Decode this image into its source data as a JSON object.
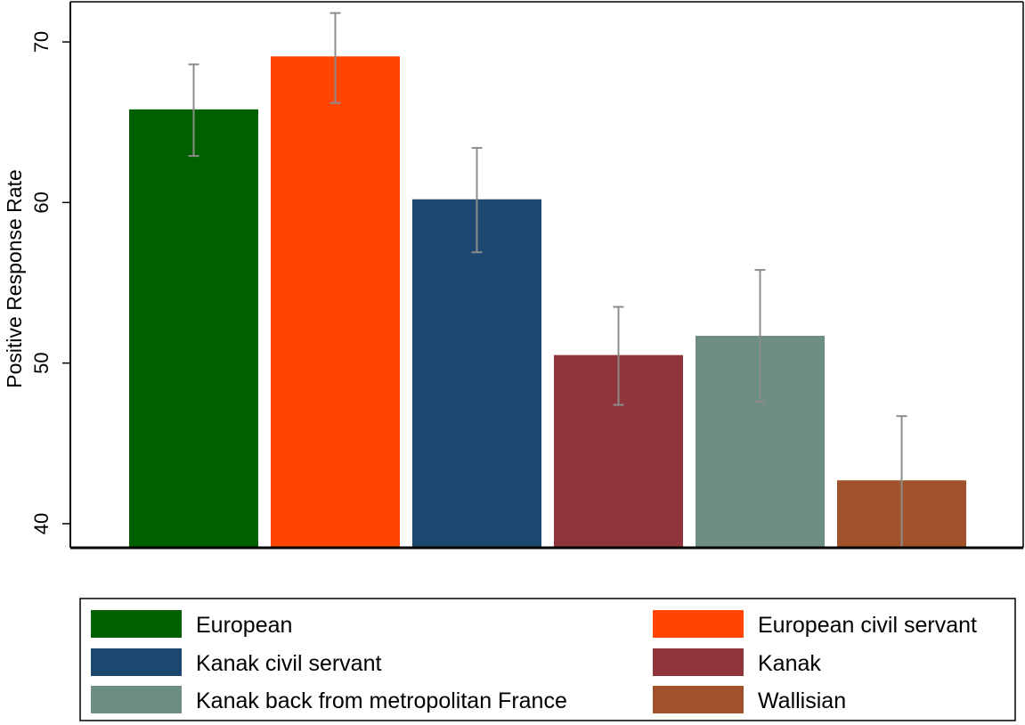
{
  "chart_data": {
    "type": "bar",
    "title": "",
    "xlabel": "",
    "ylabel": "Positive Response Rate",
    "ylim": [
      38.5,
      72.5
    ],
    "yticks": [
      40,
      50,
      60,
      70
    ],
    "grid": false,
    "legend_placement": "bottom",
    "categories": [
      "European",
      "European civil servant",
      "Kanak civil servant",
      "Kanak",
      "Kanak back from metropolitan France",
      "Wallisian"
    ],
    "values": [
      65.8,
      69.1,
      60.2,
      50.5,
      51.7,
      42.7
    ],
    "ci_low": [
      62.9,
      66.2,
      56.9,
      47.4,
      47.6,
      38.5
    ],
    "ci_high": [
      68.6,
      71.8,
      63.4,
      53.5,
      55.8,
      46.7
    ],
    "colors": [
      "#006000",
      "#ff4500",
      "#1c4870",
      "#90353c",
      "#6e8e84",
      "#a0522d"
    ],
    "legend_order": [
      0,
      1,
      2,
      3,
      4,
      5
    ]
  }
}
